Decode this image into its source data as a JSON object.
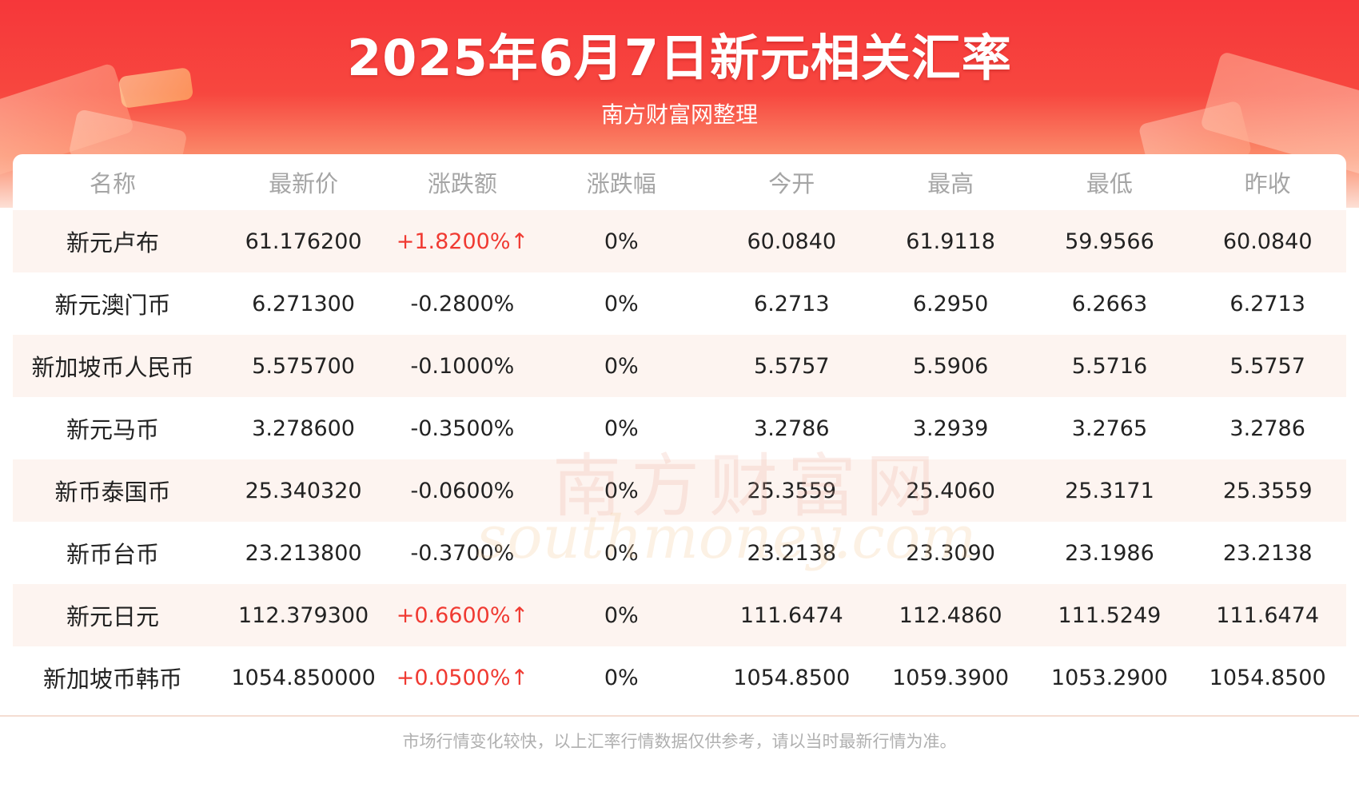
{
  "header": {
    "title": "2025年6月7日新元相关汇率",
    "subtitle": "南方财富网整理"
  },
  "watermark": {
    "cn": "南方财富网",
    "en": "southmoney.com"
  },
  "table": {
    "columns": [
      "名称",
      "最新价",
      "涨跌额",
      "涨跌幅",
      "今开",
      "最高",
      "最低",
      "昨收"
    ],
    "rows": [
      {
        "name": "新元卢布",
        "latest": "61.176200",
        "change": "+1.8200%↑",
        "direction": "up",
        "pct": "0%",
        "open": "60.0840",
        "high": "61.9118",
        "low": "59.9566",
        "prev_close": "60.0840"
      },
      {
        "name": "新元澳门币",
        "latest": "6.271300",
        "change": "-0.2800%",
        "direction": "down",
        "pct": "0%",
        "open": "6.2713",
        "high": "6.2950",
        "low": "6.2663",
        "prev_close": "6.2713"
      },
      {
        "name": "新加坡币人民币",
        "latest": "5.575700",
        "change": "-0.1000%",
        "direction": "down",
        "pct": "0%",
        "open": "5.5757",
        "high": "5.5906",
        "low": "5.5716",
        "prev_close": "5.5757"
      },
      {
        "name": "新元马币",
        "latest": "3.278600",
        "change": "-0.3500%",
        "direction": "down",
        "pct": "0%",
        "open": "3.2786",
        "high": "3.2939",
        "low": "3.2765",
        "prev_close": "3.2786"
      },
      {
        "name": "新币泰国币",
        "latest": "25.340320",
        "change": "-0.0600%",
        "direction": "down",
        "pct": "0%",
        "open": "25.3559",
        "high": "25.4060",
        "low": "25.3171",
        "prev_close": "25.3559"
      },
      {
        "name": "新币台币",
        "latest": "23.213800",
        "change": "-0.3700%",
        "direction": "down",
        "pct": "0%",
        "open": "23.2138",
        "high": "23.3090",
        "low": "23.1986",
        "prev_close": "23.2138"
      },
      {
        "name": "新元日元",
        "latest": "112.379300",
        "change": "+0.6600%↑",
        "direction": "up",
        "pct": "0%",
        "open": "111.6474",
        "high": "112.4860",
        "low": "111.5249",
        "prev_close": "111.6474"
      },
      {
        "name": "新加坡币韩币",
        "latest": "1054.850000",
        "change": "+0.0500%↑",
        "direction": "up",
        "pct": "0%",
        "open": "1054.8500",
        "high": "1059.3900",
        "low": "1053.2900",
        "prev_close": "1054.8500"
      }
    ]
  },
  "footer": {
    "disclaimer": "市场行情变化较快，以上汇率行情数据仅供参考，请以当时最新行情为准。"
  },
  "colors": {
    "header_red": "#f6373a",
    "up_red": "#f03a32",
    "stripe": "#fdf4f0",
    "header_text_gray": "#a5a5a5"
  }
}
